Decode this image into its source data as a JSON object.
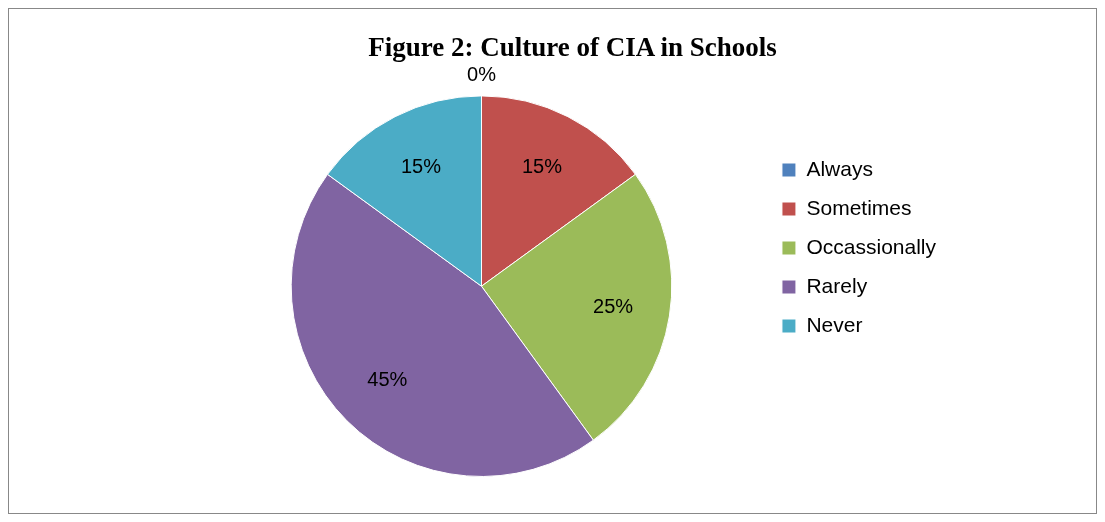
{
  "chart_data": {
    "type": "pie",
    "title": "Figure 2: Culture of CIA in Schools",
    "categories": [
      "Always",
      "Sometimes",
      "Occassionally",
      "Rarely",
      "Never"
    ],
    "values": [
      0,
      15,
      25,
      45,
      15
    ],
    "value_labels": [
      "0%",
      "15%",
      "25%",
      "45%",
      "15%"
    ],
    "colors": [
      "#4f81bd",
      "#c0504d",
      "#9bbb59",
      "#8064a2",
      "#4bacc6"
    ],
    "legend": "right"
  }
}
